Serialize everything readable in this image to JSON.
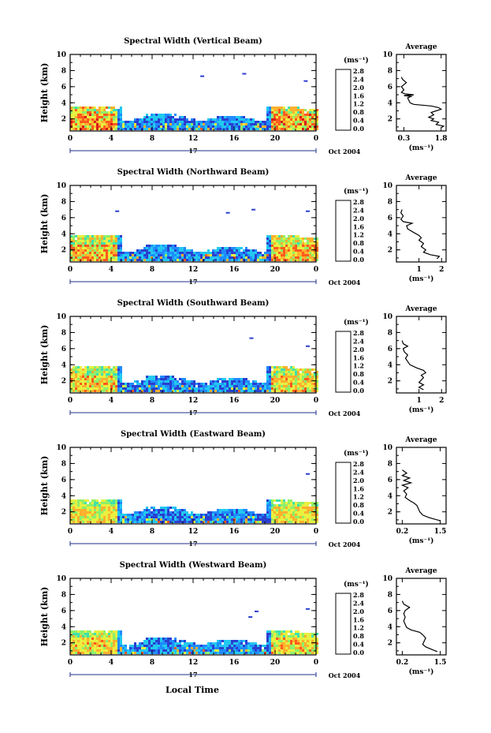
{
  "figure": {
    "date_label": "Oct 2004",
    "day_label": "17",
    "bottom_xlabel": "Local Time",
    "ylabel": "Height (km)",
    "unit_label": "(ms⁻¹)",
    "avg_unit_label": "(ms⁻¹)",
    "avg_title": "Average"
  },
  "colorbar": {
    "ticks": [
      "2.8",
      "2.4",
      "2.0",
      "1.6",
      "1.2",
      "0.8",
      "0.4",
      "0.0"
    ],
    "min": 0.0,
    "max": 2.8,
    "colors": [
      "#1f1f6b",
      "#2b3fcf",
      "#1f8cff",
      "#22c9f0",
      "#3fe0b0",
      "#8ef06a",
      "#e8f040",
      "#ffb02e",
      "#ff5a1e",
      "#d81a1a"
    ]
  },
  "chart_data": [
    {
      "type": "heatmap",
      "title": "Spectral Width (Vertical Beam)",
      "xlabel": "Local Time",
      "ylabel": "Height (km)",
      "xlim": [
        0,
        24
      ],
      "ylim": [
        0.5,
        10
      ],
      "xticks": [
        "0",
        "4",
        "8",
        "12",
        "16",
        "20",
        "0"
      ],
      "yticks": [
        "2",
        "4",
        "6",
        "8",
        "10"
      ],
      "features": {
        "base_top_km": 3.4,
        "noisy": 0.8,
        "isolated": [
          [
            12.7,
            7.2
          ],
          [
            16.8,
            7.5
          ],
          [
            22.8,
            6.6
          ]
        ]
      },
      "average": {
        "title": "Average",
        "xticks": [
          "0.3",
          "1.8"
        ],
        "xlim": [
          0.0,
          2.0
        ],
        "ylim": [
          0.5,
          10
        ],
        "yticks": [
          "2",
          "4",
          "6",
          "8",
          "10"
        ],
        "profile": [
          [
            0.9,
            1.8
          ],
          [
            1.1,
            1.9
          ],
          [
            1.3,
            1.6
          ],
          [
            1.6,
            1.7
          ],
          [
            1.8,
            1.4
          ],
          [
            2.0,
            1.5
          ],
          [
            2.2,
            1.3
          ],
          [
            2.5,
            1.5
          ],
          [
            2.8,
            1.4
          ],
          [
            3.0,
            1.6
          ],
          [
            3.2,
            1.8
          ],
          [
            3.4,
            1.7
          ],
          [
            3.6,
            1.4
          ],
          [
            3.8,
            0.7
          ],
          [
            4.0,
            0.55
          ],
          [
            4.3,
            0.5
          ],
          [
            4.6,
            0.45
          ],
          [
            4.8,
            0.6
          ],
          [
            4.9,
            0.3
          ],
          [
            5.0,
            0.7
          ],
          [
            5.1,
            0.35
          ],
          [
            5.3,
            0.2
          ],
          [
            5.6,
            0.3
          ],
          [
            6.0,
            0.2
          ],
          [
            6.5,
            0.4
          ],
          [
            6.9,
            0.25
          ],
          [
            7.2,
            0.2
          ]
        ]
      }
    },
    {
      "type": "heatmap",
      "title": "Spectral Width (Northward Beam)",
      "xlabel": "Local Time",
      "ylabel": "Height (km)",
      "xlim": [
        0,
        24
      ],
      "ylim": [
        0.5,
        10
      ],
      "xticks": [
        "0",
        "4",
        "8",
        "12",
        "16",
        "20",
        "0"
      ],
      "yticks": [
        "2",
        "4",
        "6",
        "8",
        "10"
      ],
      "features": {
        "base_top_km": 3.7,
        "noisy": 0.7,
        "isolated": [
          [
            4.4,
            6.7
          ],
          [
            15.2,
            6.5
          ],
          [
            17.7,
            6.9
          ],
          [
            23.0,
            6.7
          ]
        ]
      },
      "average": {
        "title": "Average",
        "xticks": [
          "1",
          "2"
        ],
        "xlim": [
          0.0,
          2.2
        ],
        "ylim": [
          0.5,
          10
        ],
        "yticks": [
          "2",
          "4",
          "6",
          "8",
          "10"
        ],
        "profile": [
          [
            0.9,
            1.8
          ],
          [
            1.2,
            1.9
          ],
          [
            1.4,
            1.5
          ],
          [
            1.7,
            1.2
          ],
          [
            2.0,
            1.3
          ],
          [
            2.4,
            1.1
          ],
          [
            2.8,
            1.2
          ],
          [
            3.2,
            1.0
          ],
          [
            3.5,
            1.1
          ],
          [
            3.8,
            1.0
          ],
          [
            4.1,
            0.8
          ],
          [
            4.6,
            0.5
          ],
          [
            5.0,
            0.45
          ],
          [
            5.3,
            0.7
          ],
          [
            5.5,
            0.3
          ],
          [
            5.8,
            0.2
          ],
          [
            6.2,
            0.3
          ],
          [
            6.6,
            0.2
          ],
          [
            7.0,
            0.25
          ]
        ]
      }
    },
    {
      "type": "heatmap",
      "title": "Spectral Width (Southward Beam)",
      "xlabel": "Local Time",
      "ylabel": "Height (km)",
      "xlim": [
        0,
        24
      ],
      "ylim": [
        0.5,
        10
      ],
      "xticks": [
        "0",
        "4",
        "8",
        "12",
        "16",
        "20",
        "0"
      ],
      "yticks": [
        "2",
        "4",
        "6",
        "8",
        "10"
      ],
      "features": {
        "base_top_km": 3.6,
        "noisy": 0.6,
        "isolated": [
          [
            17.5,
            7.2
          ],
          [
            23.0,
            6.2
          ]
        ]
      },
      "average": {
        "title": "Average",
        "xticks": [
          "1",
          "2"
        ],
        "xlim": [
          0.0,
          2.2
        ],
        "ylim": [
          0.5,
          10
        ],
        "yticks": [
          "2",
          "4",
          "6",
          "8",
          "10"
        ],
        "profile": [
          [
            0.9,
            1.2
          ],
          [
            1.2,
            1.0
          ],
          [
            1.5,
            1.2
          ],
          [
            1.8,
            1.0
          ],
          [
            2.1,
            1.1
          ],
          [
            2.4,
            1.2
          ],
          [
            2.7,
            1.1
          ],
          [
            3.0,
            1.3
          ],
          [
            3.3,
            1.2
          ],
          [
            3.6,
            0.9
          ],
          [
            4.0,
            0.6
          ],
          [
            4.4,
            0.5
          ],
          [
            4.8,
            0.4
          ],
          [
            5.2,
            0.5
          ],
          [
            5.6,
            0.35
          ],
          [
            6.0,
            0.3
          ],
          [
            6.3,
            0.5
          ],
          [
            6.6,
            0.3
          ],
          [
            7.0,
            0.25
          ]
        ]
      }
    },
    {
      "type": "heatmap",
      "title": "Spectral Width (Eastward Beam)",
      "xlabel": "Local Time",
      "ylabel": "Height (km)",
      "xlim": [
        0,
        24
      ],
      "ylim": [
        0.5,
        10
      ],
      "xticks": [
        "0",
        "4",
        "8",
        "12",
        "16",
        "20",
        "0"
      ],
      "yticks": [
        "2",
        "4",
        "6",
        "8",
        "10"
      ],
      "features": {
        "base_top_km": 3.3,
        "noisy": 0.5,
        "isolated": [
          [
            23.0,
            6.6
          ]
        ]
      },
      "average": {
        "title": "Average",
        "xticks": [
          "0.2",
          "1.5"
        ],
        "xlim": [
          0.0,
          1.7
        ],
        "ylim": [
          0.5,
          10
        ],
        "yticks": [
          "2",
          "4",
          "6",
          "8",
          "10"
        ],
        "profile": [
          [
            0.9,
            1.5
          ],
          [
            1.1,
            1.3
          ],
          [
            1.3,
            1.1
          ],
          [
            1.6,
            0.9
          ],
          [
            2.0,
            0.8
          ],
          [
            2.4,
            0.75
          ],
          [
            2.8,
            0.7
          ],
          [
            3.1,
            0.6
          ],
          [
            3.4,
            0.45
          ],
          [
            3.8,
            0.3
          ],
          [
            4.2,
            0.35
          ],
          [
            4.6,
            0.25
          ],
          [
            5.0,
            0.4
          ],
          [
            5.3,
            0.2
          ],
          [
            5.6,
            0.5
          ],
          [
            5.9,
            0.25
          ],
          [
            6.2,
            0.45
          ],
          [
            6.5,
            0.2
          ],
          [
            6.8,
            0.35
          ],
          [
            7.2,
            0.2
          ]
        ]
      }
    },
    {
      "type": "heatmap",
      "title": "Spectral Width (Westward Beam)",
      "xlabel": "Local Time",
      "ylabel": "Height (km)",
      "xlim": [
        0,
        24
      ],
      "ylim": [
        0.5,
        10
      ],
      "xticks": [
        "0",
        "4",
        "8",
        "12",
        "16",
        "20",
        "0"
      ],
      "yticks": [
        "2",
        "4",
        "6",
        "8",
        "10"
      ],
      "features": {
        "base_top_km": 3.4,
        "noisy": 0.55,
        "isolated": [
          [
            17.4,
            5.1
          ],
          [
            18.0,
            5.8
          ],
          [
            23.0,
            6.1
          ]
        ]
      },
      "average": {
        "title": "Average",
        "xticks": [
          "0.2",
          "1.5"
        ],
        "xlim": [
          0.0,
          1.7
        ],
        "ylim": [
          0.5,
          10
        ],
        "yticks": [
          "2",
          "4",
          "6",
          "8",
          "10"
        ],
        "profile": [
          [
            0.9,
            1.4
          ],
          [
            1.2,
            1.2
          ],
          [
            1.5,
            1.0
          ],
          [
            1.8,
            0.9
          ],
          [
            2.2,
            0.95
          ],
          [
            2.6,
            1.0
          ],
          [
            3.0,
            0.9
          ],
          [
            3.3,
            0.8
          ],
          [
            3.6,
            0.5
          ],
          [
            3.9,
            0.35
          ],
          [
            4.3,
            0.3
          ],
          [
            4.7,
            0.25
          ],
          [
            5.2,
            0.3
          ],
          [
            5.6,
            0.25
          ],
          [
            6.0,
            0.3
          ],
          [
            6.4,
            0.45
          ],
          [
            6.8,
            0.25
          ],
          [
            7.2,
            0.2
          ]
        ]
      }
    }
  ]
}
